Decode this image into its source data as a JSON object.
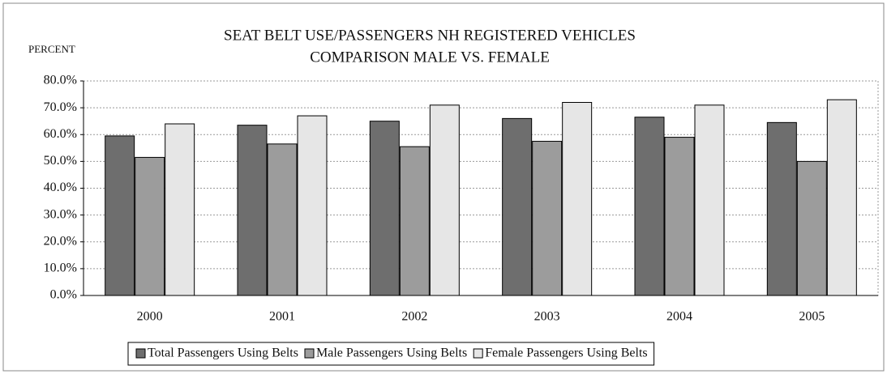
{
  "chart_data": {
    "type": "bar",
    "title": "SEAT BELT USE/PASSENGERS NH REGISTERED VEHICLES",
    "subtitle": "COMPARISON MALE VS. FEMALE",
    "y_label": "PERCENT",
    "categories": [
      "2000",
      "2001",
      "2002",
      "2003",
      "2004",
      "2005"
    ],
    "series": [
      {
        "name": "Total Passengers Using Belts",
        "color": "#6e6e6e",
        "values": [
          59.5,
          63.5,
          65,
          66,
          66.5,
          64.5
        ]
      },
      {
        "name": "Male Passengers Using Belts",
        "color": "#9c9c9c",
        "values": [
          51.5,
          56.5,
          55.5,
          57.5,
          59,
          50
        ]
      },
      {
        "name": "Female Passengers Using Belts",
        "color": "#e6e6e6",
        "values": [
          64,
          67,
          71,
          72,
          71,
          73
        ]
      }
    ],
    "ylim": [
      0,
      80
    ],
    "yticks": [
      {
        "value": 0,
        "label": "0.0%"
      },
      {
        "value": 10,
        "label": "10.0%"
      },
      {
        "value": 20,
        "label": "20.0%"
      },
      {
        "value": 30,
        "label": "30.0%"
      },
      {
        "value": 40,
        "label": "40.0%"
      },
      {
        "value": 50,
        "label": "50.0%"
      },
      {
        "value": 60,
        "label": "60.0%"
      },
      {
        "value": 70,
        "label": "70.0%"
      },
      {
        "value": 80,
        "label": "80.0%"
      }
    ],
    "grid": true,
    "legend": "bottom"
  }
}
